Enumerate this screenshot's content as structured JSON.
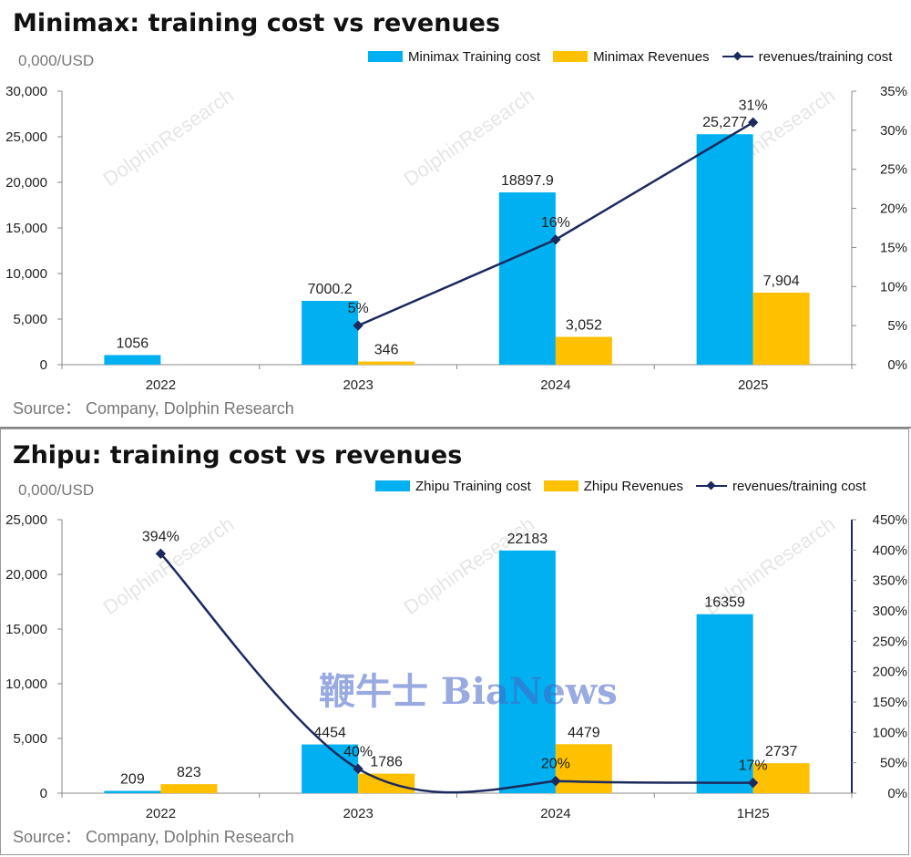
{
  "colors": {
    "cost": "#00b0f0",
    "revenue": "#ffc000",
    "ratio": "#1b2a5e",
    "axis": "#444444"
  },
  "watermark_text": "鞭牛士 BiaNews",
  "bg_watermark": "DolphinResearch",
  "chart_data": [
    {
      "type": "bar",
      "title": "Minimax: training cost vs revenues",
      "unit": "0,000/USD",
      "source": "Source：  Company, Dolphin Research",
      "categories": [
        "2022",
        "2023",
        "2024",
        "2025"
      ],
      "series": [
        {
          "name": "Minimax Training cost",
          "values": [
            1056,
            7000.2,
            18897.9,
            25277
          ],
          "labels": [
            "1056",
            "7000.2",
            "18897.9",
            "25,277"
          ]
        },
        {
          "name": "Minimax Revenues",
          "values": [
            null,
            346,
            3052,
            7904
          ],
          "labels": [
            "",
            "346",
            "3,052",
            "7,904"
          ]
        }
      ],
      "ratio": {
        "name": "revenues/training cost",
        "values": [
          null,
          5,
          16,
          31
        ],
        "labels": [
          "",
          "5%",
          "16%",
          "31%"
        ],
        "smooth": false
      },
      "ylim": [
        0,
        30000
      ],
      "yticks": [
        "0",
        "5,000",
        "10,000",
        "15,000",
        "20,000",
        "25,000",
        "30,000"
      ],
      "y2lim": [
        0,
        35
      ],
      "y2ticks": [
        "0%",
        "5%",
        "10%",
        "15%",
        "20%",
        "25%",
        "30%",
        "35%"
      ]
    },
    {
      "type": "bar",
      "title": "Zhipu: training cost vs revenues",
      "unit": "0,000/USD",
      "source": "Source：  Company, Dolphin Research",
      "categories": [
        "2022",
        "2023",
        "2024",
        "1H25"
      ],
      "series": [
        {
          "name": "Zhipu Training cost",
          "values": [
            209,
            4454,
            22183,
            16359
          ],
          "labels": [
            "209",
            "4454",
            "22183",
            "16359"
          ]
        },
        {
          "name": "Zhipu Revenues",
          "values": [
            823,
            1786,
            4479,
            2737
          ],
          "labels": [
            "823",
            "1786",
            "4479",
            "2737"
          ]
        }
      ],
      "ratio": {
        "name": "revenues/training cost",
        "values": [
          394,
          40,
          20,
          17
        ],
        "labels": [
          "394%",
          "40%",
          "20%",
          "17%"
        ],
        "smooth": true
      },
      "ylim": [
        0,
        25000
      ],
      "yticks": [
        "0",
        "5,000",
        "10,000",
        "15,000",
        "20,000",
        "25,000"
      ],
      "y2lim": [
        0,
        450
      ],
      "y2ticks": [
        "0%",
        "50%",
        "100%",
        "150%",
        "200%",
        "250%",
        "300%",
        "350%",
        "400%",
        "450%"
      ]
    }
  ]
}
